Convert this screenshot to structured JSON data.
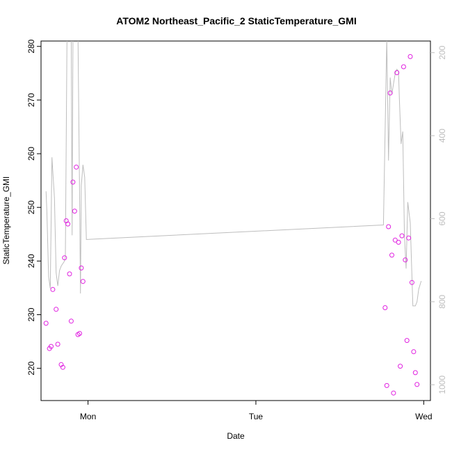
{
  "chart_data": {
    "type": "scatter",
    "title": "ATOM2 Northeast_Pacific_2 StaticTemperature_GMI",
    "xlabel": "Date",
    "ylabel": "StaticTemperature_GMI",
    "x_ticks": [
      {
        "value": 1.0,
        "label": "Mon"
      },
      {
        "value": 2.0,
        "label": "Tue"
      },
      {
        "value": 3.0,
        "label": "Wed"
      }
    ],
    "xlim": [
      0.72,
      3.04
    ],
    "ylim": [
      214,
      281
    ],
    "y_ticks": [
      220,
      230,
      240,
      250,
      260,
      270,
      280
    ],
    "y2lim": [
      1038,
      172
    ],
    "y2_ticks": [
      200,
      400,
      600,
      800,
      1000
    ],
    "grid": false,
    "colors": {
      "points": "#e020e0",
      "line": "#bdbdbd",
      "axis": "#000000",
      "axis2": "#bdbdbd"
    },
    "series": [
      {
        "type": "scatter",
        "axis": "left",
        "x": [
          0.75,
          0.77,
          0.78,
          0.79,
          0.81,
          0.82,
          0.84,
          0.85,
          0.86,
          0.87,
          0.88,
          0.89,
          0.9,
          0.91,
          0.92,
          0.93,
          0.94,
          0.95,
          0.96,
          0.97,
          2.77,
          2.78,
          2.79,
          2.8,
          2.81,
          2.82,
          2.83,
          2.84,
          2.85,
          2.86,
          2.87,
          2.88,
          2.89,
          2.9,
          2.91,
          2.92,
          2.93,
          2.94,
          2.95,
          2.96
        ],
        "y": [
          228.4,
          223.7,
          224.1,
          234.7,
          231.0,
          224.5,
          220.7,
          220.2,
          240.6,
          247.5,
          246.9,
          237.6,
          228.8,
          254.7,
          249.3,
          257.5,
          226.3,
          226.5,
          238.7,
          236.2,
          231.3,
          216.8,
          246.4,
          271.3,
          241.1,
          215.4,
          243.9,
          275.1,
          243.5,
          220.4,
          244.7,
          276.2,
          240.2,
          225.2,
          244.3,
          278.1,
          236.0,
          223.1,
          219.2,
          217.0
        ]
      },
      {
        "type": "line",
        "axis": "right",
        "x": [
          0.75,
          0.755,
          0.765,
          0.775,
          0.785,
          0.8,
          0.81,
          0.82,
          0.83,
          0.84,
          0.85,
          0.86,
          0.865,
          0.875,
          0.88,
          0.885,
          0.89,
          0.895,
          0.9,
          0.905,
          0.91,
          0.915,
          0.925,
          0.94,
          0.95,
          0.955,
          0.96,
          0.97,
          0.98,
          0.99,
          2.76,
          2.78,
          2.79,
          2.8,
          2.81,
          2.82,
          2.83,
          2.84,
          2.85,
          2.855,
          2.865,
          2.875,
          2.885,
          2.895,
          2.905,
          2.92,
          2.935,
          2.95,
          2.96,
          2.97,
          2.985
        ],
        "y": [
          534,
          582,
          740,
          768,
          452,
          550,
          730,
          762,
          725,
          714,
          708,
          702,
          690,
          150,
          150,
          150,
          150,
          150,
          150,
          640,
          150,
          150,
          150,
          150,
          550,
          780,
          520,
          470,
          500,
          650,
          615,
          165,
          460,
          260,
          300,
          275,
          250,
          240,
          245,
          310,
          420,
          390,
          640,
          720,
          560,
          610,
          810,
          810,
          800,
          770,
          750
        ]
      }
    ]
  }
}
